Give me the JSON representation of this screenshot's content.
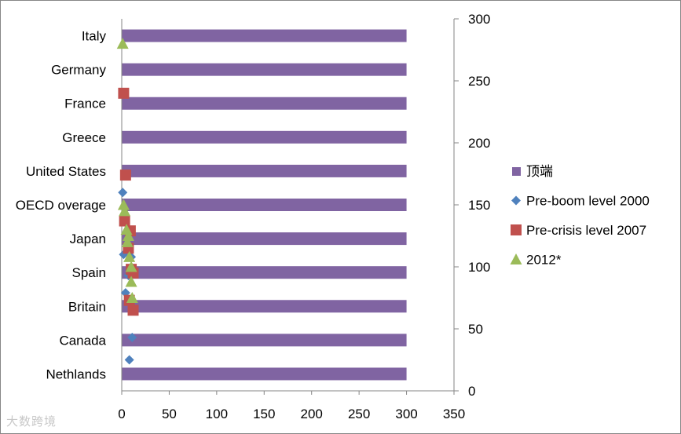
{
  "chart_data": {
    "type": "bar",
    "title": "",
    "categories": [
      "Italy",
      "Germany",
      "France",
      "Greece",
      "United States",
      "OECD overage",
      "Japan",
      "Spain",
      "Britain",
      "Canada",
      "Nethlands"
    ],
    "x_axis": {
      "ticks": [
        "0",
        "50",
        "100",
        "150",
        "200",
        "250",
        "300",
        "350"
      ],
      "range": [
        0,
        350
      ]
    },
    "y2_axis": {
      "ticks": [
        "0",
        "50",
        "100",
        "150",
        "200",
        "250",
        "300"
      ],
      "range": [
        0,
        300
      ]
    },
    "bar_series": {
      "name": "顶端",
      "color": "#8064a2",
      "values": [
        300,
        300,
        300,
        300,
        300,
        300,
        300,
        300,
        300,
        300,
        300
      ]
    },
    "marker_series": [
      {
        "name": "Pre-boom level 2000",
        "marker": "diamond",
        "color": "#4f81bd",
        "points": [
          {
            "x": 8,
            "y": 25
          },
          {
            "x": 11,
            "y": 43
          },
          {
            "x": 4,
            "y": 79
          },
          {
            "x": 7,
            "y": 93
          },
          {
            "x": 10,
            "y": 108
          },
          {
            "x": 2,
            "y": 110
          },
          {
            "x": 1,
            "y": 160
          }
        ]
      },
      {
        "name": "Pre-crisis level 2007",
        "marker": "square",
        "color": "#c0504d",
        "points": [
          {
            "x": 12,
            "y": 65
          },
          {
            "x": 8,
            "y": 73
          },
          {
            "x": 12,
            "y": 95
          },
          {
            "x": 10,
            "y": 98
          },
          {
            "x": 7,
            "y": 115
          },
          {
            "x": 9,
            "y": 129
          },
          {
            "x": 3,
            "y": 137
          },
          {
            "x": 4,
            "y": 174
          },
          {
            "x": 2,
            "y": 240
          }
        ]
      },
      {
        "name": "2012*",
        "marker": "triangle",
        "color": "#9bbb59",
        "points": [
          {
            "x": 11,
            "y": 75
          },
          {
            "x": 10,
            "y": 88
          },
          {
            "x": 10,
            "y": 100
          },
          {
            "x": 8,
            "y": 108
          },
          {
            "x": 6,
            "y": 120
          },
          {
            "x": 7,
            "y": 125
          },
          {
            "x": 5,
            "y": 130
          },
          {
            "x": 3,
            "y": 145
          },
          {
            "x": 2,
            "y": 150
          },
          {
            "x": 1,
            "y": 280
          }
        ]
      }
    ],
    "legend": {
      "position": "right",
      "entries": [
        "顶端",
        "Pre-boom level 2000",
        "Pre-crisis level 2007",
        "2012*"
      ]
    }
  },
  "watermark": "大数跨境"
}
